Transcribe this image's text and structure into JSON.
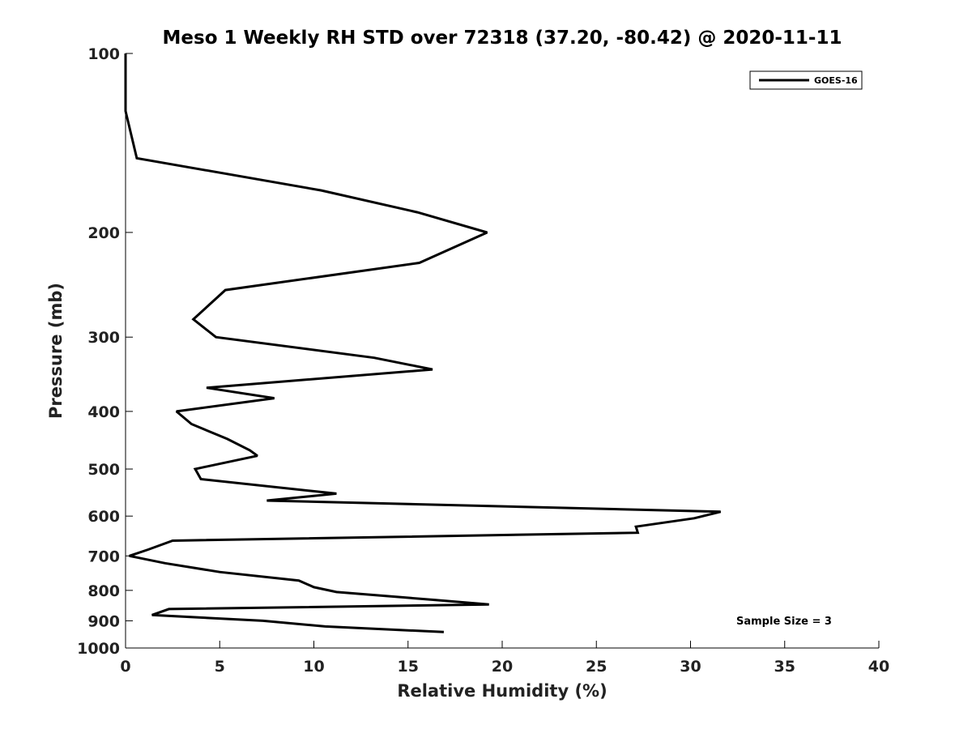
{
  "chart_data": {
    "type": "line",
    "title": "Meso 1 Weekly RH STD over 72318 (37.20, -80.42) @ 2020-11-11",
    "xlabel": "Relative Humidity (%)",
    "ylabel": "Pressure (mb)",
    "xlim": [
      0,
      40
    ],
    "ylim": [
      100,
      1000
    ],
    "y_scale": "log",
    "y_inverted": true,
    "x_ticks": [
      "0",
      "5",
      "10",
      "15",
      "20",
      "25",
      "30",
      "35",
      "40"
    ],
    "y_ticks": [
      "100",
      "200",
      "300",
      "400",
      "500",
      "600",
      "700",
      "800",
      "900",
      "1000"
    ],
    "grid": false,
    "legend_position": "top-right",
    "annotation": "Sample Size = 3",
    "series": [
      {
        "name": "GOES-16",
        "color": "#000000",
        "points": [
          [
            0.0,
            100
          ],
          [
            0.0,
            125
          ],
          [
            0.6,
            150
          ],
          [
            10.4,
            170
          ],
          [
            15.5,
            185
          ],
          [
            19.2,
            200
          ],
          [
            15.6,
            225
          ],
          [
            5.3,
            250
          ],
          [
            3.6,
            280
          ],
          [
            4.8,
            300
          ],
          [
            13.2,
            325
          ],
          [
            16.3,
            340
          ],
          [
            4.3,
            365
          ],
          [
            7.9,
            380
          ],
          [
            2.7,
            400
          ],
          [
            3.5,
            420
          ],
          [
            5.4,
            445
          ],
          [
            6.6,
            465
          ],
          [
            7.0,
            475
          ],
          [
            3.7,
            500
          ],
          [
            4.0,
            520
          ],
          [
            11.2,
            550
          ],
          [
            7.5,
            565
          ],
          [
            31.6,
            590
          ],
          [
            30.2,
            605
          ],
          [
            27.1,
            625
          ],
          [
            27.2,
            640
          ],
          [
            2.5,
            660
          ],
          [
            1.2,
            683
          ],
          [
            0.2,
            700
          ],
          [
            2.1,
            720
          ],
          [
            5.0,
            745
          ],
          [
            9.2,
            770
          ],
          [
            10.0,
            790
          ],
          [
            11.2,
            805
          ],
          [
            16.4,
            830
          ],
          [
            19.3,
            845
          ],
          [
            2.3,
            860
          ],
          [
            1.4,
            880
          ],
          [
            7.3,
            900
          ],
          [
            10.6,
            920
          ],
          [
            16.9,
            940
          ]
        ]
      }
    ]
  }
}
